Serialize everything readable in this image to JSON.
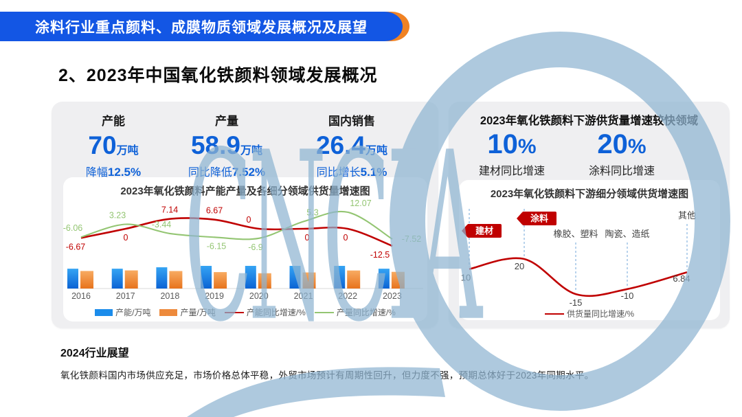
{
  "header": {
    "bar_title": "涂料行业重点颜料、成膜物质领域发展概况及展望"
  },
  "page_title": "2、2023年中国氧化铁颜料领域发展概况",
  "watermark": {
    "text": "CNCIA"
  },
  "left_panel": {
    "stats": [
      {
        "label": "产能",
        "value": "70",
        "unit": "万吨",
        "change_prefix": "降幅",
        "change_value": "12.5%"
      },
      {
        "label": "产量",
        "value": "58.9",
        "unit": "万吨",
        "change_prefix": "同比降低",
        "change_value": "7.52%"
      },
      {
        "label": "国内销售",
        "value": "26.4",
        "unit": "万吨",
        "change_prefix": "同比增长",
        "change_value": "5.1%"
      }
    ]
  },
  "right_panel": {
    "title": "2023年氧化铁颜料下游供货量增速较快领域",
    "stats": [
      {
        "value": "10",
        "unit": "%",
        "label": "建材同比增速"
      },
      {
        "value": "20",
        "unit": "%",
        "label": "涂料同比增速"
      }
    ]
  },
  "chart_data": [
    {
      "type": "bar",
      "title": "2023年氧化铁颜料产能产量及各细分领域供货量增速图",
      "categories": [
        "2016",
        "2017",
        "2018",
        "2019",
        "2020",
        "2021",
        "2022",
        "2023"
      ],
      "series": [
        {
          "name": "产能/万吨",
          "kind": "bar",
          "color": "#1b8ceb",
          "unit": "万吨",
          "values": [
            70,
            70,
            75,
            80,
            80,
            80,
            80,
            70
          ]
        },
        {
          "name": "产量/万吨",
          "kind": "bar",
          "color": "#ed8a3c",
          "unit": "万吨",
          "values": [
            62,
            64,
            61.8,
            58,
            54,
            56.8,
            63.7,
            58.9
          ]
        },
        {
          "name": "产能同比增速/%",
          "kind": "line",
          "color": "#c00000",
          "unit": "%",
          "values": [
            -6.67,
            0,
            7.14,
            6.67,
            0,
            0,
            0,
            -12.5
          ]
        },
        {
          "name": "产量同比增速/%",
          "kind": "line",
          "color": "#93c572",
          "unit": "%",
          "values": [
            -6.06,
            3.23,
            -3.44,
            -6.15,
            -6.9,
            5.3,
            12.07,
            -7.52
          ]
        }
      ],
      "value_labels_on": "line-series-only",
      "legend_position": "bottom",
      "axes": "hidden"
    },
    {
      "type": "line",
      "title": "2023年氧化铁颜料下游细分领域供货增速图",
      "categories": [
        "建材",
        "涂料",
        "橡胶、塑料",
        "陶瓷、造纸",
        "其他"
      ],
      "highlighted_categories": [
        "建材",
        "涂料"
      ],
      "series": [
        {
          "name": "供货量同比增速/%",
          "kind": "line",
          "color": "#c00000",
          "unit": "%",
          "values": [
            10,
            20,
            -15,
            -10,
            6.84
          ]
        }
      ],
      "value_labels_on": "all-points",
      "legend_position": "bottom",
      "axes": "hidden"
    }
  ],
  "outlook": {
    "title": "2024行业展望",
    "body": "氧化铁颜料国内市场供应充足，市场价格总体平稳，外贸市场预计有周期性回升，但力度不强，预期总体好于2023年同期水平。"
  },
  "colors": {
    "header_blue": "#1356e4",
    "accent_orange": "#f08223",
    "stat_blue": "#0e61d8",
    "panel_gray": "#efeff1",
    "bar_blue": "#1b8ceb",
    "bar_orange": "#ed8a3c",
    "line_red": "#c00000",
    "line_green": "#93c572",
    "flag_red": "#c00000",
    "watermark_blue": "#8fb5d2"
  }
}
